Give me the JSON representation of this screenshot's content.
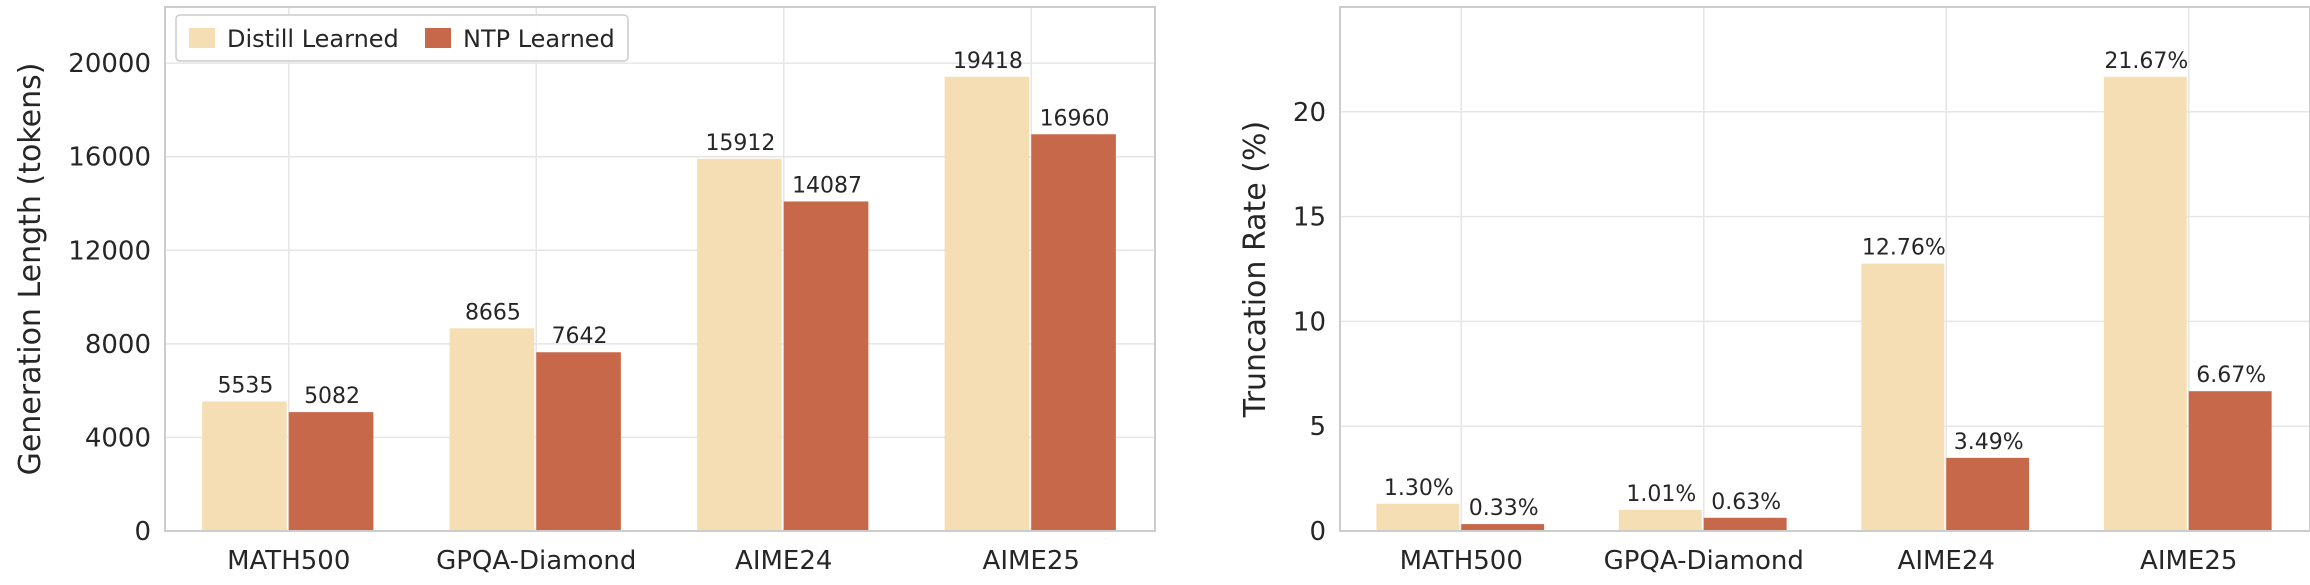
{
  "colors": {
    "distill": "#f5deb3",
    "ntp": "#c8684a",
    "grid": "#e6e6e6",
    "frame": "#cccccc",
    "text": "#262626"
  },
  "legend": {
    "distill_label": "Distill Learned",
    "ntp_label": "NTP Learned",
    "placement": "upper-left of left panel"
  },
  "chart_data": [
    {
      "type": "bar",
      "title": "",
      "xlabel": "",
      "ylabel": "Generation Length (tokens)",
      "categories": [
        "MATH500",
        "GPQA-Diamond",
        "AIME24",
        "AIME25"
      ],
      "ylim": [
        0,
        22400
      ],
      "yticks": [
        0,
        4000,
        8000,
        12000,
        16000,
        20000
      ],
      "ytick_labels": [
        "0",
        "4000",
        "8000",
        "12000",
        "16000",
        "20000"
      ],
      "grid": true,
      "series": [
        {
          "name": "Distill Learned",
          "values": [
            5535,
            8665,
            15912,
            19418
          ],
          "labels": [
            "5535",
            "8665",
            "15912",
            "19418"
          ]
        },
        {
          "name": "NTP Learned",
          "values": [
            5082,
            7642,
            14087,
            16960
          ],
          "labels": [
            "5082",
            "7642",
            "14087",
            "16960"
          ]
        }
      ]
    },
    {
      "type": "bar",
      "title": "",
      "xlabel": "",
      "ylabel": "Truncation Rate (%)",
      "categories": [
        "MATH500",
        "GPQA-Diamond",
        "AIME24",
        "AIME25"
      ],
      "ylim": [
        0,
        25
      ],
      "yticks": [
        0,
        5,
        10,
        15,
        20
      ],
      "ytick_labels": [
        "0",
        "5",
        "10",
        "15",
        "20"
      ],
      "grid": true,
      "series": [
        {
          "name": "Distill Learned",
          "values": [
            1.3,
            1.01,
            12.76,
            21.67
          ],
          "labels": [
            "1.30%",
            "1.01%",
            "12.76%",
            "21.67%"
          ]
        },
        {
          "name": "NTP Learned",
          "values": [
            0.33,
            0.63,
            3.49,
            6.67
          ],
          "labels": [
            "0.33%",
            "0.63%",
            "3.49%",
            "6.67%"
          ]
        }
      ]
    }
  ]
}
